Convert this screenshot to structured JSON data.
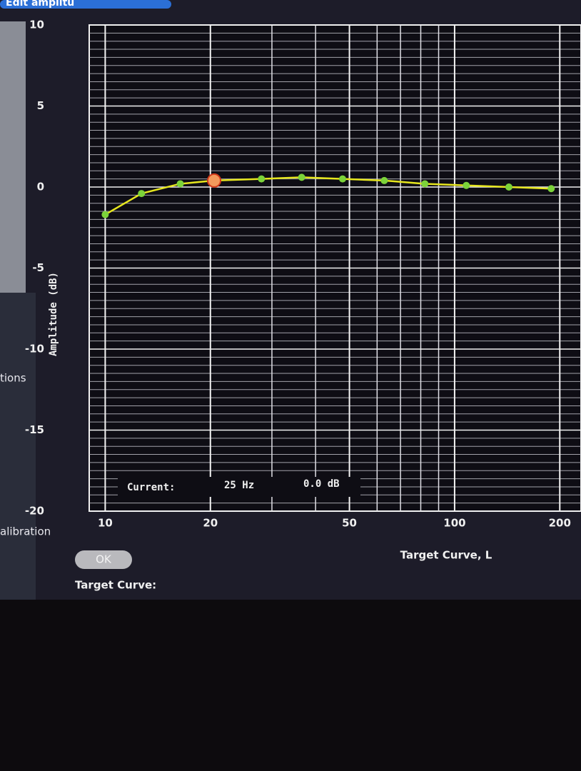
{
  "window_tab": "Edit amplitu",
  "sidebar": {
    "item_1": "tions",
    "item_2": "alibration"
  },
  "readout": {
    "label": "Current:",
    "frequency": "25 Hz",
    "amplitude": "0.0 dB"
  },
  "ok_button": "OK",
  "target_curve_label": "Target Curve:",
  "chart_data": {
    "type": "line",
    "y_label": "Amplitude (dB)",
    "x_caption": "Target Curve, L",
    "x_scale": "log",
    "x": [
      10,
      12.7,
      16.4,
      20.5,
      28,
      36.5,
      47.8,
      62.9,
      82.2,
      108,
      143,
      189
    ],
    "series": [
      {
        "color": "#e6e61e",
        "values": [
          -1.7,
          -0.4,
          0.2,
          0.4,
          0.5,
          0.6,
          0.5,
          0.4,
          0.2,
          0.1,
          0,
          -0.1
        ]
      }
    ],
    "marker_color": "#7cd33a",
    "selected_index": 3,
    "selected_color": "#f39a5c",
    "xlim": [
      9,
      230
    ],
    "xticks": [
      10,
      20,
      50,
      100,
      200
    ],
    "x_minor_ticks": [
      30,
      40,
      60,
      70,
      80,
      90
    ],
    "ylim": [
      -20,
      10
    ],
    "yticks": [
      10,
      5,
      0,
      -5,
      -10,
      -15,
      -20
    ],
    "y_minor_step": 0.5,
    "grid": true
  }
}
